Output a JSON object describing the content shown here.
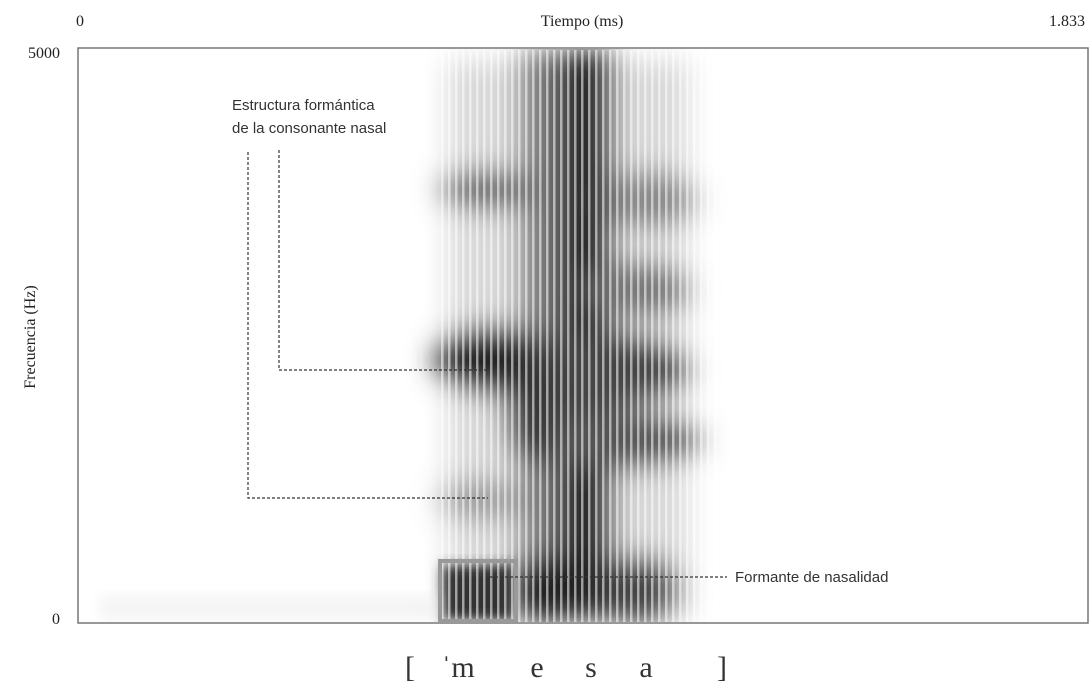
{
  "axes": {
    "x_start": "0",
    "x_title": "Tiempo (ms)",
    "x_end": "1.833",
    "y_top": "5000",
    "y_bottom": "0",
    "y_title": "Frecuencia (Hz)"
  },
  "annotations": {
    "nasal_structure": [
      "Estructura formántica",
      "de la consonante nasal"
    ],
    "nasality": "Formante de nasalidad"
  },
  "transcription": [
    "[",
    "ˈm",
    "e",
    "s",
    "a",
    "]"
  ]
}
